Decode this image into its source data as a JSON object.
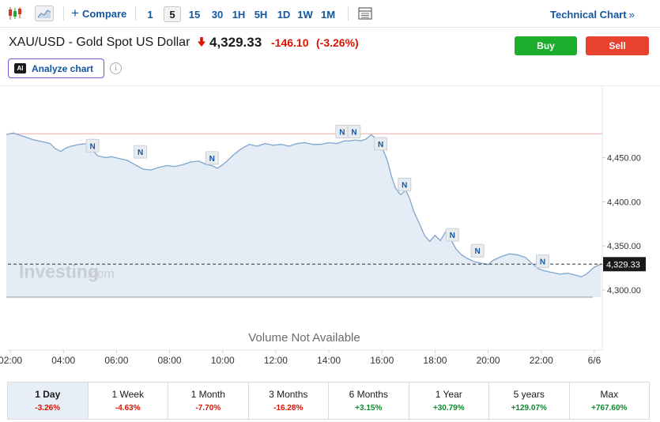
{
  "toolbar": {
    "compare_label": "Compare",
    "timeframes": [
      "1",
      "5",
      "15",
      "30",
      "1H",
      "5H",
      "1D",
      "1W",
      "1M"
    ],
    "active_timeframe": "5",
    "technical_chart_label": "Technical Chart",
    "chevron": "»",
    "icons": [
      "candlestick-icon",
      "area-chart-icon",
      "plus-icon",
      "data-table-icon"
    ]
  },
  "header": {
    "title": "XAU/USD - Gold Spot US Dollar",
    "price": "4,329.33",
    "change": "-146.10",
    "change_pct": "(-3.26%)",
    "direction": "down",
    "buy_label": "Buy",
    "sell_label": "Sell",
    "analyze_label": "Analyze chart",
    "ai_badge": "AI",
    "info_glyph": "i"
  },
  "chart_data": {
    "type": "area",
    "watermark": "Investing",
    "watermark_suffix": ".com",
    "volume_text": "Volume Not Available",
    "current_price": 4329.33,
    "current_price_label": "4,329.33",
    "prev_close_line": 4477,
    "ylim": [
      4292,
      4505
    ],
    "xlim": [
      1.85,
      24.3
    ],
    "yticks": [
      {
        "v": 4450,
        "label": "4,450.00"
      },
      {
        "v": 4400,
        "label": "4,400.00"
      },
      {
        "v": 4350,
        "label": "4,350.00"
      },
      {
        "v": 4300,
        "label": "4,300.00"
      }
    ],
    "xticks": [
      {
        "t": 2,
        "label": "02:00"
      },
      {
        "t": 4,
        "label": "04:00"
      },
      {
        "t": 6,
        "label": "06:00"
      },
      {
        "t": 8,
        "label": "08:00"
      },
      {
        "t": 10,
        "label": "10:00"
      },
      {
        "t": 12,
        "label": "12:00"
      },
      {
        "t": 14,
        "label": "14:00"
      },
      {
        "t": 16,
        "label": "16:00"
      },
      {
        "t": 18,
        "label": "18:00"
      },
      {
        "t": 20,
        "label": "20:00"
      },
      {
        "t": 22,
        "label": "22:00"
      },
      {
        "t": 24,
        "label": "6/6"
      }
    ],
    "series": [
      {
        "values": [
          [
            1.85,
            4476
          ],
          [
            2.1,
            4478
          ],
          [
            2.3,
            4476
          ],
          [
            2.6,
            4473
          ],
          [
            2.9,
            4470
          ],
          [
            3.2,
            4468
          ],
          [
            3.5,
            4466
          ],
          [
            3.7,
            4460
          ],
          [
            3.9,
            4457
          ],
          [
            4.1,
            4461
          ],
          [
            4.3,
            4463
          ],
          [
            4.6,
            4465
          ],
          [
            4.9,
            4466
          ],
          [
            5.1,
            4458
          ],
          [
            5.3,
            4452
          ],
          [
            5.6,
            4450
          ],
          [
            5.8,
            4451
          ],
          [
            6.1,
            4449
          ],
          [
            6.4,
            4447
          ],
          [
            6.7,
            4442
          ],
          [
            7.0,
            4437
          ],
          [
            7.3,
            4436
          ],
          [
            7.6,
            4439
          ],
          [
            7.9,
            4441
          ],
          [
            8.2,
            4440
          ],
          [
            8.5,
            4442
          ],
          [
            8.8,
            4445
          ],
          [
            9.1,
            4446
          ],
          [
            9.4,
            4442
          ],
          [
            9.6,
            4441
          ],
          [
            9.8,
            4438
          ],
          [
            10.0,
            4442
          ],
          [
            10.2,
            4447
          ],
          [
            10.4,
            4453
          ],
          [
            10.7,
            4460
          ],
          [
            11.0,
            4465
          ],
          [
            11.3,
            4463
          ],
          [
            11.6,
            4466
          ],
          [
            11.9,
            4464
          ],
          [
            12.2,
            4465
          ],
          [
            12.5,
            4463
          ],
          [
            12.8,
            4466
          ],
          [
            13.1,
            4467
          ],
          [
            13.4,
            4465
          ],
          [
            13.7,
            4465
          ],
          [
            14.0,
            4467
          ],
          [
            14.3,
            4466
          ],
          [
            14.6,
            4469
          ],
          [
            14.8,
            4469
          ],
          [
            15.0,
            4470
          ],
          [
            15.2,
            4469
          ],
          [
            15.4,
            4471
          ],
          [
            15.6,
            4476
          ],
          [
            15.75,
            4472
          ],
          [
            15.9,
            4466
          ],
          [
            16.05,
            4458
          ],
          [
            16.2,
            4447
          ],
          [
            16.35,
            4430
          ],
          [
            16.5,
            4416
          ],
          [
            16.7,
            4408
          ],
          [
            16.9,
            4413
          ],
          [
            17.05,
            4403
          ],
          [
            17.2,
            4389
          ],
          [
            17.4,
            4376
          ],
          [
            17.6,
            4362
          ],
          [
            17.8,
            4355
          ],
          [
            18.0,
            4362
          ],
          [
            18.2,
            4356
          ],
          [
            18.4,
            4366
          ],
          [
            18.6,
            4357
          ],
          [
            18.8,
            4346
          ],
          [
            19.0,
            4340
          ],
          [
            19.2,
            4336
          ],
          [
            19.5,
            4332
          ],
          [
            19.8,
            4330
          ],
          [
            20.0,
            4329
          ],
          [
            20.2,
            4334
          ],
          [
            20.5,
            4338
          ],
          [
            20.8,
            4341
          ],
          [
            21.1,
            4340
          ],
          [
            21.4,
            4337
          ],
          [
            21.7,
            4329
          ],
          [
            21.9,
            4324
          ],
          [
            22.1,
            4322
          ],
          [
            22.4,
            4320
          ],
          [
            22.7,
            4318
          ],
          [
            23.0,
            4319
          ],
          [
            23.3,
            4317
          ],
          [
            23.5,
            4315
          ],
          [
            23.7,
            4318
          ],
          [
            24.0,
            4326
          ],
          [
            24.25,
            4329.33
          ]
        ]
      }
    ],
    "news_markers": [
      {
        "t": 5.1,
        "v": 4460,
        "label": "N"
      },
      {
        "t": 6.9,
        "v": 4453,
        "label": "N"
      },
      {
        "t": 9.6,
        "v": 4446,
        "label": "N"
      },
      {
        "t": 14.5,
        "v": 4476,
        "label": "N"
      },
      {
        "t": 14.95,
        "v": 4476,
        "label": "N"
      },
      {
        "t": 15.95,
        "v": 4462,
        "label": "N"
      },
      {
        "t": 16.85,
        "v": 4416,
        "label": "N"
      },
      {
        "t": 18.65,
        "v": 4359,
        "label": "N"
      },
      {
        "t": 19.6,
        "v": 4341,
        "label": "N"
      },
      {
        "t": 22.05,
        "v": 4329,
        "label": "N"
      }
    ]
  },
  "periods": [
    {
      "label": "1 Day",
      "change": "-3.26%",
      "dir": "neg",
      "active": true
    },
    {
      "label": "1 Week",
      "change": "-4.63%",
      "dir": "neg"
    },
    {
      "label": "1 Month",
      "change": "-7.70%",
      "dir": "neg"
    },
    {
      "label": "3 Months",
      "change": "-16.28%",
      "dir": "neg"
    },
    {
      "label": "6 Months",
      "change": "+3.15%",
      "dir": "pos"
    },
    {
      "label": "1 Year",
      "change": "+30.79%",
      "dir": "pos"
    },
    {
      "label": "5 years",
      "change": "+129.07%",
      "dir": "pos"
    },
    {
      "label": "Max",
      "change": "+767.60%",
      "dir": "pos"
    }
  ],
  "colors": {
    "accent": "#1256a0",
    "buy": "#1bad2b",
    "sell": "#e8412d",
    "down": "#d91400",
    "up": "#0e8a2c",
    "line": "#7fa6cc",
    "fill": "#e4ecf5",
    "prev_close": "#f2a7a7"
  }
}
